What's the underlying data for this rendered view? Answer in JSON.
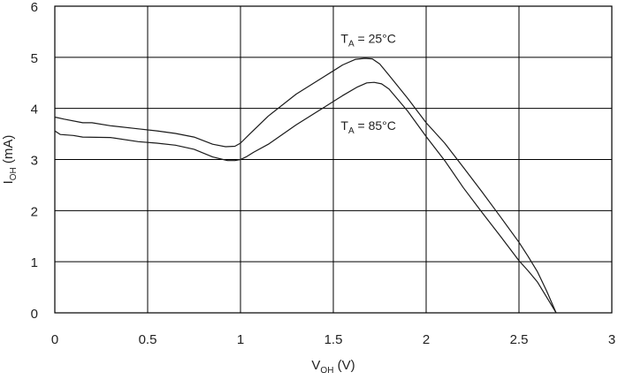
{
  "chart_data": {
    "type": "line",
    "xlabel": {
      "main": "V",
      "sub": "OH",
      "unit": " (V)"
    },
    "ylabel": {
      "main": "I",
      "sub": "OH",
      "unit": " (mA)"
    },
    "xlim": [
      0,
      3
    ],
    "ylim": [
      0,
      6
    ],
    "xticks": [
      0,
      0.5,
      1,
      1.5,
      2,
      2.5,
      3
    ],
    "xtick_labels": [
      "0",
      "0.5",
      "1",
      "1.5",
      "2",
      "2.5",
      "3"
    ],
    "yticks": [
      0,
      1,
      2,
      3,
      4,
      5,
      6
    ],
    "ytick_labels": [
      "0",
      "1",
      "2",
      "3",
      "4",
      "5",
      "6"
    ],
    "grid": true,
    "colors": {
      "line": "#1a1a1a",
      "grid": "#000000",
      "text": "#222222"
    },
    "series": [
      {
        "annotation": {
          "main": "T",
          "sub": "A",
          "rest": " = 25°C"
        },
        "x": [
          0,
          0.05,
          0.15,
          0.2,
          0.3,
          0.45,
          0.55,
          0.65,
          0.75,
          0.85,
          0.92,
          0.97,
          1.0,
          1.05,
          1.15,
          1.3,
          1.45,
          1.55,
          1.62,
          1.67,
          1.71,
          1.75,
          1.8,
          1.9,
          2.0,
          2.1,
          2.2,
          2.3,
          2.4,
          2.5,
          2.55,
          2.6,
          2.65,
          2.7
        ],
        "y": [
          3.83,
          3.79,
          3.72,
          3.72,
          3.66,
          3.6,
          3.56,
          3.51,
          3.44,
          3.3,
          3.25,
          3.26,
          3.32,
          3.5,
          3.85,
          4.28,
          4.62,
          4.85,
          4.96,
          4.98,
          4.97,
          4.87,
          4.65,
          4.2,
          3.72,
          3.32,
          2.85,
          2.37,
          1.88,
          1.38,
          1.1,
          0.8,
          0.42,
          0.0
        ]
      },
      {
        "annotation": {
          "main": "T",
          "sub": "A",
          "rest": " = 85°C"
        },
        "x": [
          0,
          0.03,
          0.1,
          0.15,
          0.3,
          0.45,
          0.55,
          0.65,
          0.75,
          0.85,
          0.93,
          0.97,
          1.0,
          1.03,
          1.07,
          1.15,
          1.3,
          1.45,
          1.55,
          1.63,
          1.68,
          1.72,
          1.76,
          1.8,
          1.9,
          2.0,
          2.1,
          2.2,
          2.3,
          2.4,
          2.5,
          2.55,
          2.6,
          2.65,
          2.7
        ],
        "y": [
          3.56,
          3.49,
          3.47,
          3.44,
          3.43,
          3.35,
          3.32,
          3.28,
          3.2,
          3.05,
          2.98,
          2.98,
          3.0,
          3.05,
          3.14,
          3.3,
          3.68,
          4.02,
          4.25,
          4.42,
          4.5,
          4.51,
          4.48,
          4.38,
          3.95,
          3.45,
          2.98,
          2.45,
          1.97,
          1.5,
          1.02,
          0.82,
          0.6,
          0.3,
          0.0
        ]
      }
    ]
  }
}
